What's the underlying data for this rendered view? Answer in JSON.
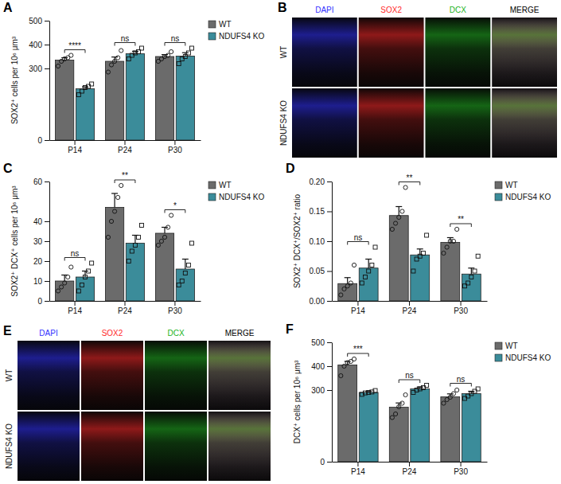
{
  "chart_data": [
    {
      "type": "bar",
      "panel": "A",
      "ylabel": "SOX2⁺ cells per 10⁶ μm³",
      "categories": [
        "P14",
        "P24",
        "P30"
      ],
      "series": [
        {
          "name": "WT",
          "color": "#6b6b6b",
          "marker": "circle",
          "values": [
            335,
            330,
            350
          ],
          "errors": [
            10,
            18,
            8
          ],
          "points": [
            [
              310,
              330,
              340,
              345,
              355
            ],
            [
              285,
              315,
              330,
              345,
              375
            ],
            [
              330,
              340,
              350,
              355,
              370
            ]
          ]
        },
        {
          "name": "NDUFS4 KO",
          "color": "#3b8c9a",
          "marker": "square",
          "values": [
            215,
            362,
            352
          ],
          "errors": [
            8,
            10,
            14
          ],
          "points": [
            [
              190,
              205,
              220,
              225,
              235
            ],
            [
              340,
              355,
              365,
              370,
              385
            ],
            [
              320,
              340,
              350,
              365,
              385
            ]
          ]
        }
      ],
      "annotations": [
        "****",
        "ns",
        "ns"
      ],
      "ylim": [
        0,
        500
      ],
      "yticks": [
        0,
        300,
        400,
        500
      ],
      "grid": false,
      "legend": "right"
    },
    {
      "type": "bar",
      "panel": "C",
      "ylabel": "SOX2⁺ DCX⁺ cells per 10⁶ μm³",
      "categories": [
        "P14",
        "P24",
        "P30"
      ],
      "series": [
        {
          "name": "WT",
          "color": "#6b6b6b",
          "marker": "circle",
          "values": [
            10,
            47,
            34
          ],
          "errors": [
            3,
            7,
            3
          ],
          "points": [
            [
              5,
              7,
              9,
              12,
              17
            ],
            [
              32,
              40,
              45,
              52,
              58
            ],
            [
              28,
              30,
              32,
              37,
              43
            ]
          ]
        },
        {
          "name": "NDUFS4 KO",
          "color": "#3b8c9a",
          "marker": "square",
          "values": [
            12,
            29,
            16
          ],
          "errors": [
            3,
            4,
            5
          ],
          "points": [
            [
              5,
              8,
              12,
              15,
              19
            ],
            [
              20,
              25,
              28,
              32,
              38
            ],
            [
              8,
              10,
              14,
              18,
              29
            ]
          ]
        }
      ],
      "annotations": [
        "ns",
        "**",
        "*"
      ],
      "ylim": [
        0,
        60
      ],
      "yticks": [
        0,
        10,
        20,
        30,
        40,
        60
      ],
      "grid": false,
      "legend": "right"
    },
    {
      "type": "bar",
      "panel": "D",
      "ylabel": "SOX2⁺ DCX⁺/SOX2⁺ ratio",
      "categories": [
        "P14",
        "P24",
        "P30"
      ],
      "series": [
        {
          "name": "WT",
          "color": "#6b6b6b",
          "marker": "circle",
          "values": [
            0.029,
            0.143,
            0.098
          ],
          "errors": [
            0.01,
            0.015,
            0.008
          ],
          "points": [
            [
              0.01,
              0.02,
              0.025,
              0.03,
              0.06
            ],
            [
              0.12,
              0.13,
              0.14,
              0.15,
              0.19
            ],
            [
              0.08,
              0.09,
              0.1,
              0.1,
              0.12
            ]
          ]
        },
        {
          "name": "NDUFS4 KO",
          "color": "#3b8c9a",
          "marker": "square",
          "values": [
            0.055,
            0.077,
            0.045
          ],
          "errors": [
            0.015,
            0.01,
            0.01
          ],
          "points": [
            [
              0.03,
              0.04,
              0.05,
              0.06,
              0.09
            ],
            [
              0.05,
              0.07,
              0.075,
              0.08,
              0.11
            ],
            [
              0.025,
              0.03,
              0.04,
              0.05,
              0.075
            ]
          ]
        }
      ],
      "annotations": [
        "ns",
        "**",
        "**"
      ],
      "ylim": [
        0,
        0.2
      ],
      "yticks": [
        {
          "value": 0,
          "label": "0.00"
        },
        {
          "value": 0.05,
          "label": "0.05"
        },
        {
          "value": 0.1,
          "label": "0.10"
        },
        {
          "value": 0.15,
          "label": "0.15"
        },
        {
          "value": 0.2,
          "label": "0.20"
        }
      ],
      "grid": false,
      "legend": "right"
    },
    {
      "type": "bar",
      "panel": "F",
      "ylabel": "DCX⁺ cells per 10⁶ μm³",
      "categories": [
        "P14",
        "P24",
        "P30"
      ],
      "series": [
        {
          "name": "WT",
          "color": "#6b6b6b",
          "marker": "circle",
          "values": [
            405,
            228,
            272
          ],
          "errors": [
            15,
            18,
            12
          ],
          "points": [
            [
              360,
              400,
              415,
              420,
              430
            ],
            [
              185,
              200,
              230,
              245,
              280
            ],
            [
              245,
              260,
              270,
              285,
              300
            ]
          ]
        },
        {
          "name": "NDUFS4 KO",
          "color": "#3b8c9a",
          "marker": "square",
          "values": [
            290,
            305,
            285
          ],
          "errors": [
            4,
            8,
            10
          ],
          "points": [
            [
              282,
              288,
              290,
              292,
              298
            ],
            [
              290,
              300,
              305,
              310,
              320
            ],
            [
              265,
              275,
              285,
              295,
              305
            ]
          ]
        }
      ],
      "annotations": [
        "***",
        "ns",
        "ns"
      ],
      "ylim": [
        0,
        500
      ],
      "yticks": [
        0,
        300,
        400,
        500
      ],
      "grid": false,
      "legend": "right"
    }
  ],
  "image_panels": [
    {
      "panel": "B",
      "channels": [
        {
          "label": "DAPI",
          "color": "#3232ff"
        },
        {
          "label": "SOX2",
          "color": "#ff2a2a"
        },
        {
          "label": "DCX",
          "color": "#22b422"
        },
        {
          "label": "MERGE",
          "color": "#000000"
        }
      ],
      "rows": [
        "WT",
        "NDUFS4 KO"
      ]
    },
    {
      "panel": "E",
      "channels": [
        {
          "label": "DAPI",
          "color": "#3232ff"
        },
        {
          "label": "SOX2",
          "color": "#ff2a2a"
        },
        {
          "label": "DCX",
          "color": "#22b422"
        },
        {
          "label": "MERGE",
          "color": "#000000"
        }
      ],
      "rows": [
        "WT",
        "NDUFS4 KO"
      ]
    }
  ]
}
